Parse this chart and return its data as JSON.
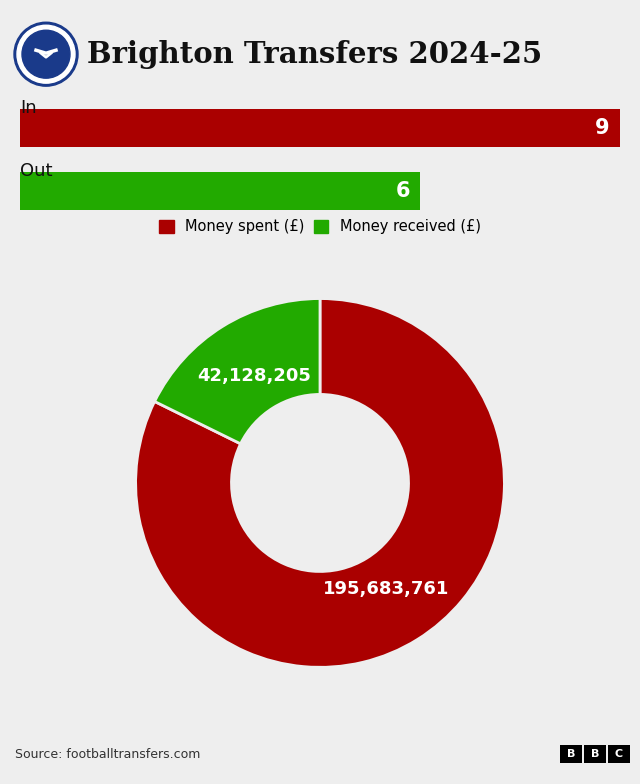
{
  "title": "Brighton Transfers 2024-25",
  "background_color": "#eeeeee",
  "bar_in_value": 9,
  "bar_in_max": 9,
  "bar_in_color": "#aa0000",
  "bar_out_value": 6,
  "bar_out_max": 9,
  "bar_out_color": "#22aa00",
  "bar_label_in": "In",
  "bar_label_out": "Out",
  "pie_spent": 195683761,
  "pie_received": 42128205,
  "pie_color_spent": "#aa0000",
  "pie_color_received": "#22aa00",
  "legend_spent": "Money spent (£)",
  "legend_received": "Money received (£)",
  "source_text": "Source: footballtransfers.com",
  "title_fontsize": 21,
  "bar_label_fontsize": 13,
  "bar_number_fontsize": 15,
  "pie_label_fontsize": 13,
  "source_fontsize": 9,
  "top_stripe_color": "#1a5fa8",
  "logo_outer_color": "#1a3a8a",
  "logo_inner_color": "#1a3a8a",
  "divider_color": "#cccccc",
  "footer_line_color": "#1a5fa8"
}
